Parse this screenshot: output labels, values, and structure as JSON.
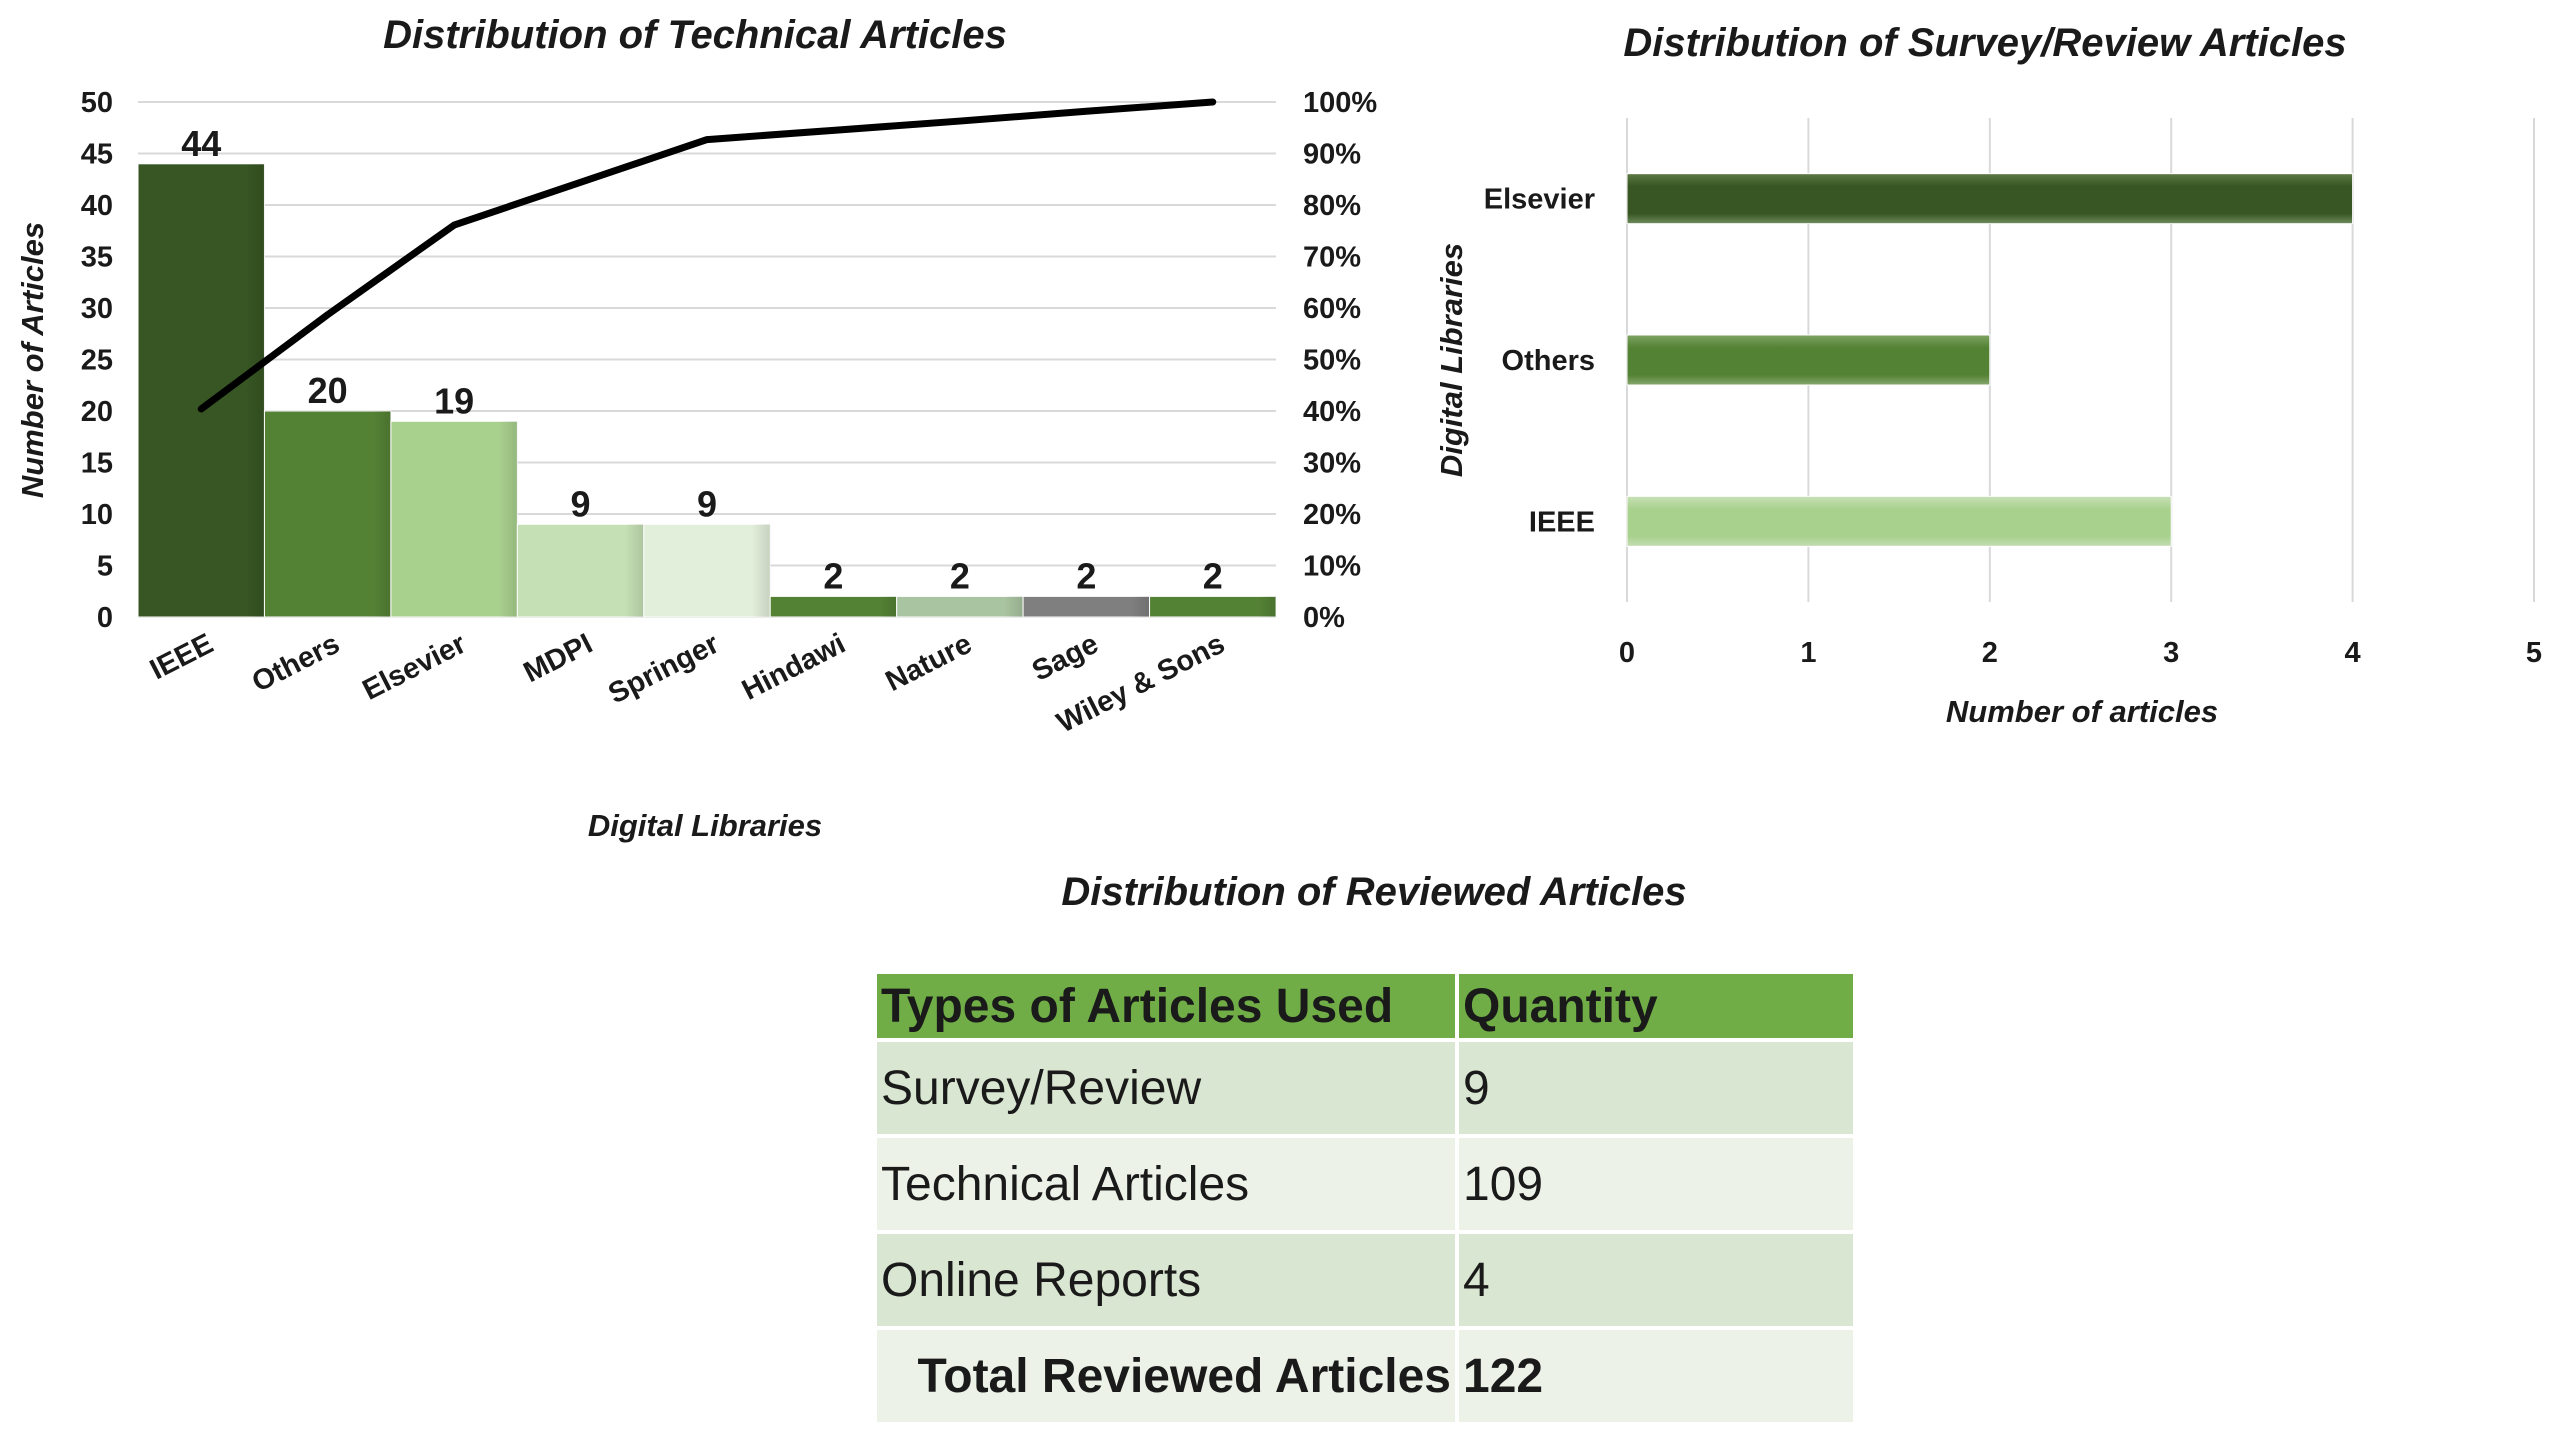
{
  "chart_data": [
    {
      "type": "bar",
      "title": "Distribution of Technical Articles",
      "xlabel": "Digital Libraries",
      "ylabel": "Number of Articles",
      "categories": [
        "IEEE",
        "Others",
        "Elsevier",
        "MDPI",
        "Springer",
        "Hindawi",
        "Nature",
        "Sage",
        "Wiley & Sons"
      ],
      "values": [
        44,
        20,
        19,
        9,
        9,
        2,
        2,
        2,
        2
      ],
      "data_labels": [
        "44",
        "20",
        "19",
        "9",
        "9",
        "2",
        "2",
        "2",
        "2"
      ],
      "ylim": [
        0,
        50
      ],
      "yticks": [
        "0",
        "5",
        "10",
        "15",
        "20",
        "25",
        "30",
        "35",
        "40",
        "45",
        "50"
      ],
      "secondary_axis": {
        "type": "line",
        "cumulative_percent": [
          40.4,
          58.7,
          76.1,
          84.4,
          92.7,
          94.5,
          96.3,
          98.2,
          100
        ],
        "ylim": [
          0,
          100
        ],
        "yticks": [
          "0%",
          "10%",
          "20%",
          "30%",
          "40%",
          "50%",
          "60%",
          "70%",
          "80%",
          "90%",
          "100%"
        ],
        "color": "#000000"
      },
      "bar_colors": [
        "#375623",
        "#548235",
        "#a9d18e",
        "#c5e0b4",
        "#e2efda",
        "#548235",
        "#a9c4a0",
        "#7f7f7f",
        "#548235"
      ],
      "grid": true
    },
    {
      "type": "bar",
      "orientation": "horizontal",
      "title": "Distribution of Survey/Review Articles",
      "xlabel": "Number of articles",
      "ylabel": "Digital Libraries",
      "categories": [
        "Elsevier",
        "Others",
        "IEEE"
      ],
      "values": [
        4,
        2,
        3
      ],
      "xlim": [
        0,
        5
      ],
      "xticks": [
        "0",
        "1",
        "2",
        "3",
        "4",
        "5"
      ],
      "bar_colors": [
        "#375623",
        "#548235",
        "#a9d18e"
      ],
      "grid": true
    },
    {
      "type": "table",
      "title": "Distribution of Reviewed Articles",
      "headers": [
        "Types of Articles Used",
        "Quantity"
      ],
      "rows": [
        [
          "Survey/Review",
          "9"
        ],
        [
          "Technical Articles",
          "109"
        ],
        [
          "Online Reports",
          "4"
        ]
      ],
      "total": [
        "Total Reviewed Articles",
        "122"
      ],
      "header_color": "#70ad47"
    }
  ]
}
